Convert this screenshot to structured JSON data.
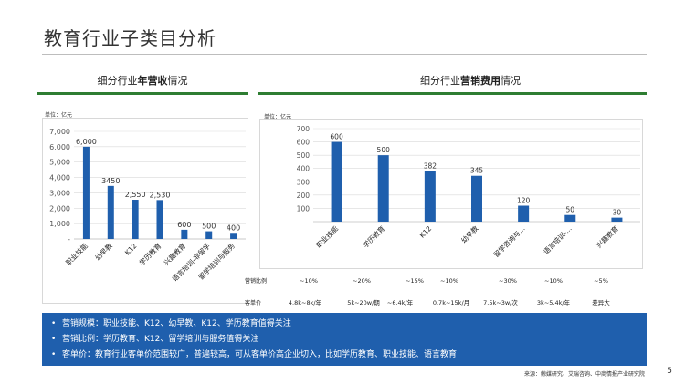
{
  "page": {
    "title": "教育行业子类目分析",
    "page_number": "5",
    "source": "来源：鲸媒研究、艾瑞咨询、中商情报产业研究院"
  },
  "left": {
    "title_prefix": "细分行业",
    "title_bold": "年营收",
    "title_suffix": "情况",
    "unit": "单位：亿元"
  },
  "right": {
    "title_prefix": "细分行业",
    "title_bold": "营销费用",
    "title_suffix": "情况",
    "unit": "单位：亿元",
    "ratio_label": "营销比例",
    "ratios": [
      "~10%",
      "~20%",
      "~15%",
      "~10%",
      "~30%",
      "~10%",
      "~5%"
    ],
    "price_label": "客单价",
    "prices": [
      "4.8k~8k/年",
      "5k~20w/期",
      "~6.4k/年",
      "0.7k~15k/月",
      "7.5k~3w/次",
      "3k~5.4k/年",
      "差异大"
    ]
  },
  "bullets": [
    "营销规模：职业技能、K12、幼早教、K12、学历教育值得关注",
    "营销比例：学历教育、K12、留学培训与服务值得关注",
    "客单价：教育行业客单价范围较广，普遍较高，可从客单价高企业切入，比如学历教育、职业技能、语言教育"
  ],
  "chart_data": [
    {
      "type": "bar",
      "title": "细分行业年营收情况",
      "categories": [
        "职业技能",
        "幼早教",
        "K12",
        "学历教育",
        "兴趣教育",
        "语言培训-非留学",
        "留学培训与服务"
      ],
      "values": [
        6000,
        3450,
        2550,
        2530,
        600,
        500,
        400
      ],
      "value_labels": [
        "6,000",
        "3450",
        "2,550",
        "2,530",
        "600",
        "500",
        "400"
      ],
      "y_ticks": [
        "-",
        "1,000",
        "2,000",
        "3,000",
        "4,000",
        "5,000",
        "6,000",
        "7,000"
      ],
      "ylim": [
        0,
        7000
      ],
      "grid": true,
      "color": "#1f5fad"
    },
    {
      "type": "bar",
      "title": "细分行业营销费用情况",
      "categories": [
        "职业技能",
        "学历教育",
        "K12",
        "幼早教",
        "留学咨询与...",
        "语言培训-...",
        "兴趣教育"
      ],
      "values": [
        600,
        500,
        382,
        345,
        120,
        50,
        30
      ],
      "value_labels": [
        "600",
        "500",
        "382",
        "345",
        "120",
        "50",
        "30"
      ],
      "y_ticks": [
        "100",
        "200",
        "300",
        "400",
        "500",
        "600",
        "700"
      ],
      "ylim": [
        0,
        700
      ],
      "grid": true,
      "color": "#1f5fad"
    }
  ]
}
